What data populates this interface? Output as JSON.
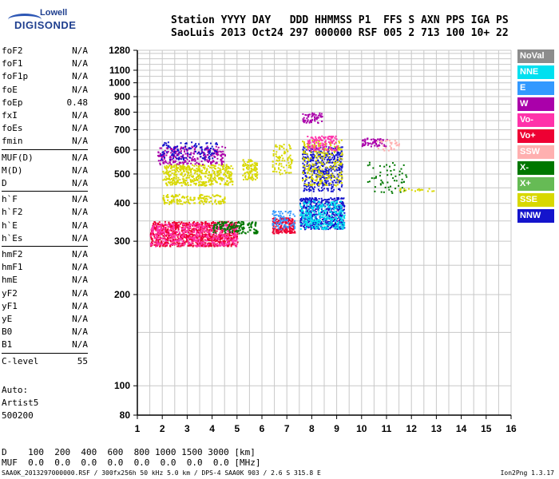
{
  "logo": {
    "line1": "Lowell",
    "line2": "DIGISONDE"
  },
  "header": {
    "line1": "Station YYYY DAY   DDD HHMMSS P1  FFS S AXN PPS IGA PS",
    "line2": "SaoLuis 2013 Oct24 297 000000 RSF 005 2 713 100 10+ 22"
  },
  "params": [
    {
      "name": "foF2",
      "value": "N/A"
    },
    {
      "name": "foF1",
      "value": "N/A"
    },
    {
      "name": "foF1p",
      "value": "N/A"
    },
    {
      "name": "foE",
      "value": "N/A"
    },
    {
      "name": "foEp",
      "value": "0.48"
    },
    {
      "name": "fxI",
      "value": "N/A"
    },
    {
      "name": "foEs",
      "value": "N/A"
    },
    {
      "name": "fmin",
      "value": "N/A"
    },
    {
      "name": "MUF(D)",
      "value": "N/A"
    },
    {
      "name": "M(D)",
      "value": "N/A"
    },
    {
      "name": "D",
      "value": "N/A"
    },
    {
      "name": "h`F",
      "value": "N/A"
    },
    {
      "name": "h`F2",
      "value": "N/A"
    },
    {
      "name": "h`E",
      "value": "N/A"
    },
    {
      "name": "h`Es",
      "value": "N/A"
    },
    {
      "name": "hmF2",
      "value": "N/A"
    },
    {
      "name": "hmF1",
      "value": "N/A"
    },
    {
      "name": "hmE",
      "value": "N/A"
    },
    {
      "name": "yF2",
      "value": "N/A"
    },
    {
      "name": "yF1",
      "value": "N/A"
    },
    {
      "name": "yE",
      "value": "N/A"
    },
    {
      "name": "B0",
      "value": "N/A"
    },
    {
      "name": "B1",
      "value": "N/A"
    },
    {
      "name": "C-level",
      "value": "55"
    }
  ],
  "auto": {
    "label": "Auto:",
    "artist": "Artist5",
    "version": "500200"
  },
  "legend": [
    {
      "label": "NoVal",
      "color": "#8c8c8c"
    },
    {
      "label": "NNE",
      "color": "#00e0f0"
    },
    {
      "label": "E",
      "color": "#3399ff"
    },
    {
      "label": "W",
      "color": "#aa00aa"
    },
    {
      "label": "Vo-",
      "color": "#ff33aa"
    },
    {
      "label": "Vo+",
      "color": "#ee0033"
    },
    {
      "label": "SSW",
      "color": "#ffb0b0"
    },
    {
      "label": "X-",
      "color": "#007700"
    },
    {
      "label": "X+",
      "color": "#66bb55"
    },
    {
      "label": "SSE",
      "color": "#d8d800"
    },
    {
      "label": "NNW",
      "color": "#1414cc"
    }
  ],
  "bottom": {
    "d_row": "D    100  200  400  600  800 1000 1500 3000 [km]",
    "muf_row": "MUF  0.0  0.0  0.0  0.0  0.0  0.0  0.0  0.0 [MHz]"
  },
  "footer": {
    "left": "SAA0K_2013297000000.RSF / 300fx256h 50 kHz 5.0 km / DPS-4 SAA0K 903 / 2.6 S 315.8 E",
    "right": "Ion2Png 1.3.17"
  },
  "chart_data": {
    "type": "scatter",
    "title": "",
    "xlabel": "",
    "ylabel": "",
    "xlim": [
      1,
      16
    ],
    "ylim": [
      80,
      1280
    ],
    "yscale": "log",
    "grid": true,
    "legend_placement": "right",
    "x_ticks": [
      1,
      2,
      3,
      4,
      5,
      6,
      7,
      8,
      9,
      10,
      11,
      12,
      13,
      14,
      15,
      16
    ],
    "y_ticks": [
      80,
      100,
      200,
      300,
      400,
      500,
      600,
      700,
      800,
      900,
      1000,
      1100,
      1280
    ],
    "y_tick_labels": [
      "80",
      "100",
      "200",
      "300",
      "400",
      "500",
      "600",
      "700",
      "800",
      "900",
      "1000",
      "1100",
      "1280"
    ],
    "clusters": [
      {
        "label": "Vo+",
        "x": [
          1.5,
          5.0
        ],
        "y": [
          290,
          350
        ],
        "count": 900
      },
      {
        "label": "Vo-",
        "x": [
          1.5,
          5.0
        ],
        "y": [
          290,
          345
        ],
        "count": 400
      },
      {
        "label": "X-",
        "x": [
          4.0,
          5.8
        ],
        "y": [
          320,
          350
        ],
        "count": 150
      },
      {
        "label": "SSE",
        "x": [
          2.0,
          4.8
        ],
        "y": [
          460,
          540
        ],
        "count": 450
      },
      {
        "label": "SSE",
        "x": [
          2.0,
          4.5
        ],
        "y": [
          400,
          430
        ],
        "count": 150
      },
      {
        "label": "W",
        "x": [
          1.8,
          4.5
        ],
        "y": [
          540,
          620
        ],
        "count": 250
      },
      {
        "label": "NNW",
        "x": [
          1.9,
          4.2
        ],
        "y": [
          560,
          640
        ],
        "count": 120
      },
      {
        "label": "SSE",
        "x": [
          5.2,
          5.8
        ],
        "y": [
          480,
          560
        ],
        "count": 100
      },
      {
        "label": "Vo+",
        "x": [
          6.4,
          7.3
        ],
        "y": [
          320,
          360
        ],
        "count": 180
      },
      {
        "label": "E",
        "x": [
          6.4,
          7.3
        ],
        "y": [
          330,
          380
        ],
        "count": 80
      },
      {
        "label": "SSE",
        "x": [
          6.4,
          7.2
        ],
        "y": [
          500,
          630
        ],
        "count": 90
      },
      {
        "label": "NNW",
        "x": [
          7.5,
          9.3
        ],
        "y": [
          330,
          420
        ],
        "count": 500
      },
      {
        "label": "NNE",
        "x": [
          7.5,
          9.3
        ],
        "y": [
          330,
          410
        ],
        "count": 300
      },
      {
        "label": "NNW",
        "x": [
          7.6,
          9.2
        ],
        "y": [
          440,
          620
        ],
        "count": 450
      },
      {
        "label": "SSE",
        "x": [
          7.6,
          9.2
        ],
        "y": [
          460,
          650
        ],
        "count": 250
      },
      {
        "label": "Vo-",
        "x": [
          7.8,
          9.0
        ],
        "y": [
          600,
          670
        ],
        "count": 120
      },
      {
        "label": "W",
        "x": [
          7.6,
          8.4
        ],
        "y": [
          740,
          800
        ],
        "count": 60
      },
      {
        "label": "W",
        "x": [
          10.0,
          11.0
        ],
        "y": [
          620,
          660
        ],
        "count": 60
      },
      {
        "label": "SSW",
        "x": [
          10.6,
          11.5
        ],
        "y": [
          600,
          650
        ],
        "count": 30
      },
      {
        "label": "X-",
        "x": [
          10.2,
          11.8
        ],
        "y": [
          430,
          550
        ],
        "count": 60
      },
      {
        "label": "SSE",
        "x": [
          11.5,
          12.9
        ],
        "y": [
          440,
          450
        ],
        "count": 20
      }
    ]
  }
}
